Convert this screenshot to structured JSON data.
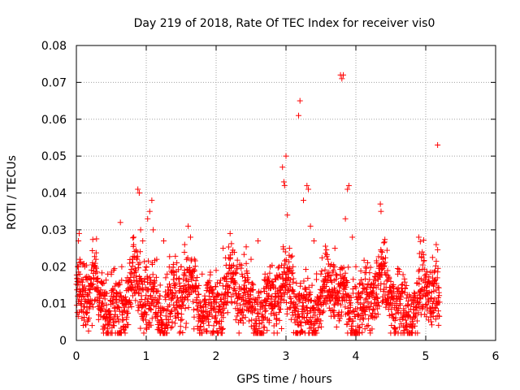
{
  "chart_data": {
    "type": "scatter",
    "title": "Day 219 of 2018, Rate Of TEC Index for receiver vis0",
    "xlabel": "GPS time / hours",
    "ylabel": "ROTI / TECUs",
    "xlim": [
      0,
      6
    ],
    "ylim": [
      0,
      0.08
    ],
    "x_ticks": [
      0,
      1,
      2,
      3,
      4,
      5,
      6
    ],
    "x_tick_labels": [
      "0",
      "1",
      "2",
      "3",
      "4",
      "5",
      "6"
    ],
    "y_ticks": [
      0,
      0.01,
      0.02,
      0.03,
      0.04,
      0.05,
      0.06,
      0.07,
      0.08
    ],
    "y_tick_labels": [
      "0",
      "0.01",
      "0.02",
      "0.03",
      "0.04",
      "0.05",
      "0.06",
      "0.07",
      "0.08"
    ],
    "grid": true,
    "marker": "+",
    "color": "#ff0000",
    "series": [
      {
        "name": "ROTI",
        "points": [
          [
            0.02,
            0.015
          ],
          [
            0.03,
            0.027
          ],
          [
            0.04,
            0.029
          ],
          [
            0.05,
            0.022
          ],
          [
            0.06,
            0.01
          ],
          [
            0.08,
            0.006
          ],
          [
            0.1,
            0.012
          ],
          [
            0.12,
            0.02
          ],
          [
            0.15,
            0.009
          ],
          [
            0.18,
            0.014
          ],
          [
            0.2,
            0.011
          ],
          [
            0.25,
            0.017
          ],
          [
            0.28,
            0.022
          ],
          [
            0.3,
            0.016
          ],
          [
            0.35,
            0.008
          ],
          [
            0.4,
            0.013
          ],
          [
            0.45,
            0.018
          ],
          [
            0.5,
            0.012
          ],
          [
            0.55,
            0.009
          ],
          [
            0.6,
            0.015
          ],
          [
            0.63,
            0.032
          ],
          [
            0.65,
            0.02
          ],
          [
            0.7,
            0.011
          ],
          [
            0.75,
            0.016
          ],
          [
            0.8,
            0.022
          ],
          [
            0.85,
            0.013
          ],
          [
            0.88,
            0.041
          ],
          [
            0.9,
            0.04
          ],
          [
            0.92,
            0.03
          ],
          [
            0.95,
            0.027
          ],
          [
            1.0,
            0.02
          ],
          [
            1.02,
            0.033
          ],
          [
            1.05,
            0.035
          ],
          [
            1.08,
            0.038
          ],
          [
            1.1,
            0.03
          ],
          [
            1.15,
            0.022
          ],
          [
            1.2,
            0.015
          ],
          [
            1.25,
            0.027
          ],
          [
            1.3,
            0.018
          ],
          [
            1.4,
            0.012
          ],
          [
            1.5,
            0.02
          ],
          [
            1.55,
            0.026
          ],
          [
            1.6,
            0.031
          ],
          [
            1.65,
            0.022
          ],
          [
            1.7,
            0.014
          ],
          [
            1.8,
            0.018
          ],
          [
            1.9,
            0.012
          ],
          [
            2.0,
            0.019
          ],
          [
            2.1,
            0.025
          ],
          [
            2.2,
            0.029
          ],
          [
            2.3,
            0.02
          ],
          [
            2.4,
            0.015
          ],
          [
            2.5,
            0.022
          ],
          [
            2.6,
            0.027
          ],
          [
            2.7,
            0.018
          ],
          [
            2.8,
            0.012
          ],
          [
            2.9,
            0.02
          ],
          [
            2.95,
            0.047
          ],
          [
            2.97,
            0.043
          ],
          [
            2.98,
            0.042
          ],
          [
            3.0,
            0.05
          ],
          [
            3.02,
            0.034
          ],
          [
            3.05,
            0.025
          ],
          [
            3.1,
            0.02
          ],
          [
            3.18,
            0.061
          ],
          [
            3.2,
            0.065
          ],
          [
            3.25,
            0.038
          ],
          [
            3.3,
            0.042
          ],
          [
            3.32,
            0.041
          ],
          [
            3.35,
            0.031
          ],
          [
            3.4,
            0.027
          ],
          [
            3.5,
            0.018
          ],
          [
            3.6,
            0.022
          ],
          [
            3.7,
            0.025
          ],
          [
            3.78,
            0.072
          ],
          [
            3.8,
            0.071
          ],
          [
            3.82,
            0.072
          ],
          [
            3.85,
            0.033
          ],
          [
            3.88,
            0.041
          ],
          [
            3.9,
            0.042
          ],
          [
            3.95,
            0.028
          ],
          [
            4.0,
            0.02
          ],
          [
            4.1,
            0.015
          ],
          [
            4.2,
            0.012
          ],
          [
            4.3,
            0.021
          ],
          [
            4.35,
            0.037
          ],
          [
            4.36,
            0.035
          ],
          [
            4.4,
            0.02
          ],
          [
            4.5,
            0.016
          ],
          [
            4.6,
            0.018
          ],
          [
            4.7,
            0.013
          ],
          [
            4.8,
            0.011
          ],
          [
            4.9,
            0.028
          ],
          [
            4.95,
            0.024
          ],
          [
            5.0,
            0.012
          ],
          [
            5.05,
            0.015
          ],
          [
            5.1,
            0.01
          ],
          [
            5.15,
            0.026
          ],
          [
            5.17,
            0.053
          ],
          [
            5.18,
            0.008
          ]
        ]
      }
    ],
    "dense_band": {
      "x_range": [
        0.0,
        5.2
      ],
      "y_median_approx": 0.011,
      "y_low_approx": 0.002,
      "y_high_approx": 0.028
    }
  }
}
